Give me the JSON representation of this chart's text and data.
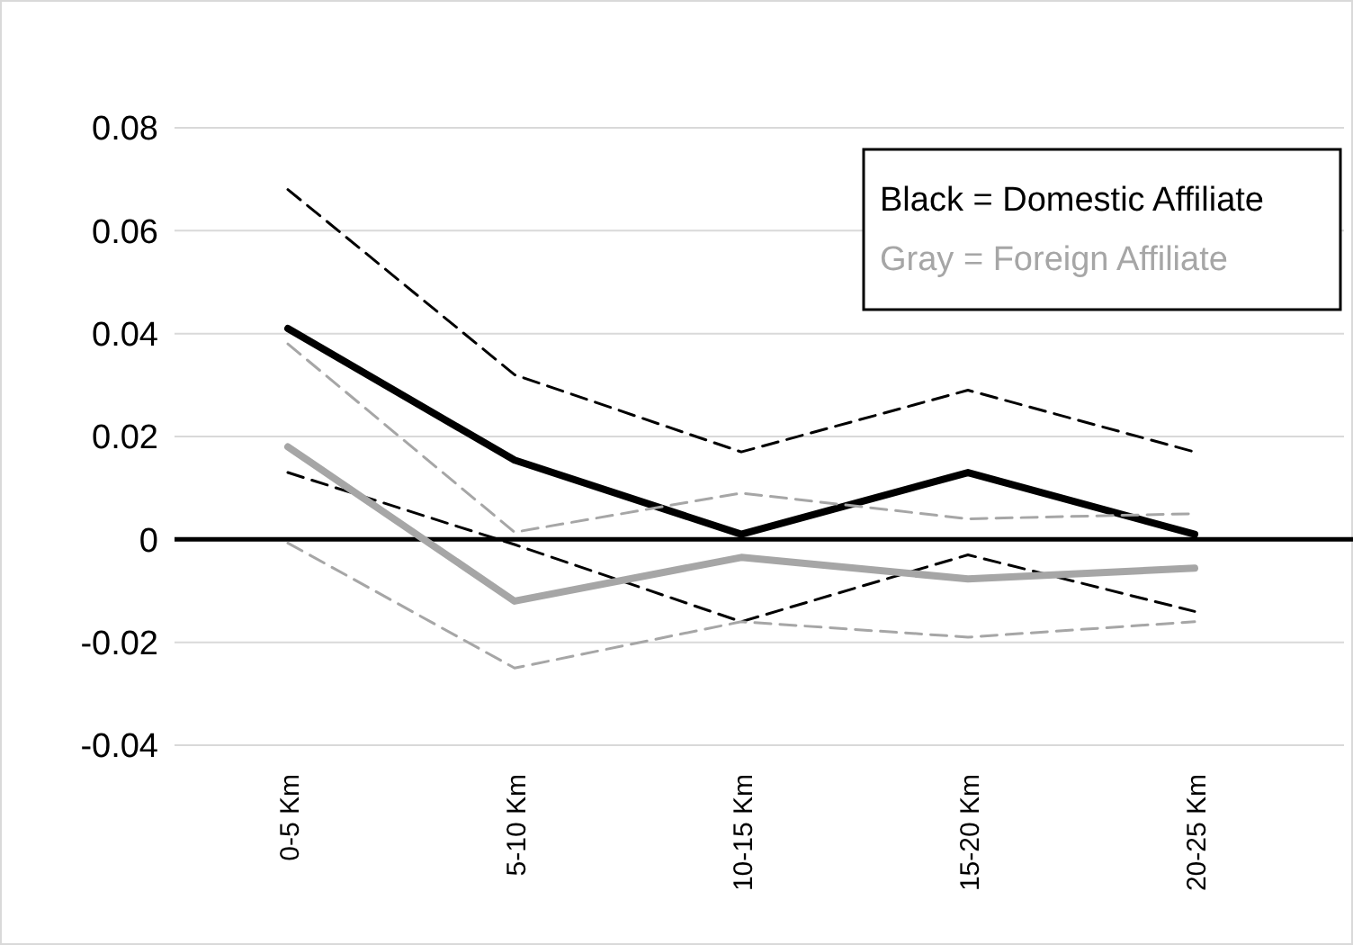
{
  "chart_data": {
    "type": "line",
    "categories": [
      "0-5 Km",
      "5-10 Km",
      "10-15 Km",
      "15-20 Km",
      "20-25 Km"
    ],
    "ylim": [
      -0.04,
      0.08
    ],
    "yticks": [
      -0.04,
      -0.02,
      0,
      0.02,
      0.04,
      0.06,
      0.08
    ],
    "grid": "y",
    "annotations": [
      "Black = Domestic Affiliate",
      "Gray = Foreign Affiliate"
    ],
    "series": [
      {
        "color": "#000000",
        "line_style": "solid",
        "values": [
          0.041,
          0.0154,
          0.001,
          0.013,
          0.001
        ]
      },
      {
        "color": "#000000",
        "line_style": "dashed",
        "values": [
          0.068,
          0.032,
          0.017,
          0.029,
          0.017
        ]
      },
      {
        "color": "#000000",
        "line_style": "dashed",
        "values": [
          0.013,
          -0.001,
          -0.016,
          -0.003,
          -0.014
        ]
      },
      {
        "color": "#a6a6a6",
        "line_style": "solid",
        "values": [
          0.018,
          -0.012,
          -0.0035,
          -0.0077,
          -0.0056
        ]
      },
      {
        "color": "#a6a6a6",
        "line_style": "dashed",
        "values": [
          0.038,
          0.0014,
          0.009,
          0.004,
          0.005
        ]
      },
      {
        "color": "#a6a6a6",
        "line_style": "dashed",
        "values": [
          -0.0007,
          -0.025,
          -0.016,
          -0.019,
          -0.016
        ]
      }
    ]
  }
}
